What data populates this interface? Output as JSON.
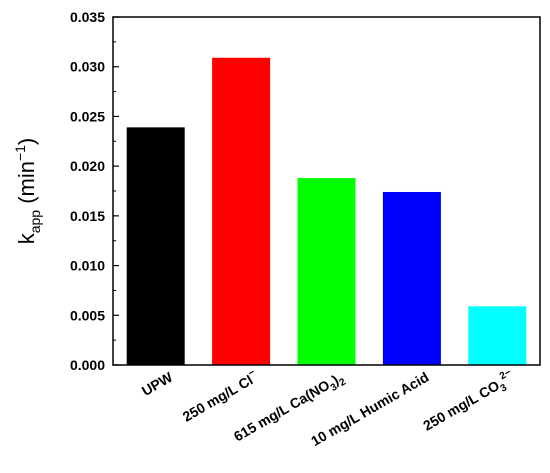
{
  "chart_data": {
    "type": "bar",
    "categories": [
      {
        "parts": [
          {
            "t": "UPW"
          }
        ]
      },
      {
        "parts": [
          {
            "t": "250 mg/L Cl"
          },
          {
            "t": "−",
            "sup": true
          }
        ]
      },
      {
        "parts": [
          {
            "t": "615 mg/L Ca(NO"
          },
          {
            "t": "3",
            "sub": true
          },
          {
            "t": ")"
          },
          {
            "t": "2",
            "sub": true
          }
        ]
      },
      {
        "parts": [
          {
            "t": "10 mg/L Humic Acid"
          }
        ]
      },
      {
        "parts": [
          {
            "t": "250 mg/L CO"
          },
          {
            "t": "3",
            "sub": true
          },
          {
            "t": "2−",
            "sup": true
          }
        ]
      }
    ],
    "values": [
      0.0239,
      0.0309,
      0.0188,
      0.0174,
      0.0059
    ],
    "colors": [
      "#000000",
      "#ff0000",
      "#00ff00",
      "#0000ff",
      "#00ffff"
    ],
    "ylim": [
      0,
      0.035
    ],
    "yticks": [
      "0.000",
      "0.005",
      "0.010",
      "0.015",
      "0.020",
      "0.025",
      "0.030",
      "0.035"
    ],
    "ylabel": {
      "main": "k",
      "sub": "app",
      "unit": "(min",
      "unit_sup": "−1",
      "close": ")"
    },
    "grid": false,
    "legend": "none"
  }
}
